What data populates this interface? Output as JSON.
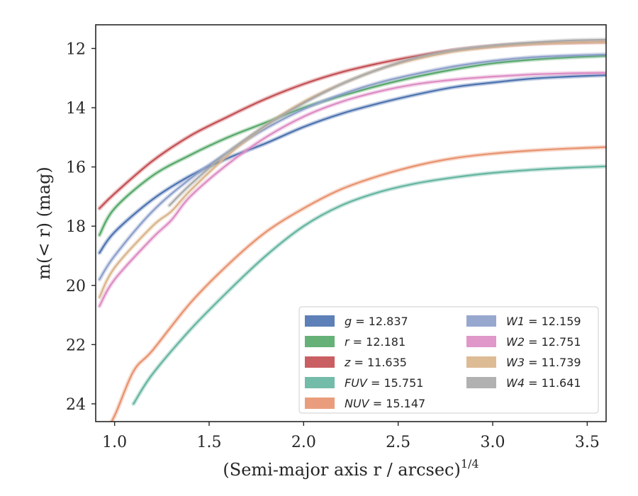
{
  "chart_data": {
    "type": "line",
    "xlabel": "(Semi-major axis r / arcsec)",
    "xlabel_superscript": "1/4",
    "ylabel": "m(< r) (mag)",
    "xlim": [
      0.9,
      3.6
    ],
    "ylim": [
      24.6,
      11.2
    ],
    "y_inverted": true,
    "grid": false,
    "legend_placement": "lower-right",
    "x_ticks": [
      1.0,
      1.5,
      2.0,
      2.5,
      3.0,
      3.5
    ],
    "x_tick_labels": [
      "1.0",
      "1.5",
      "2.0",
      "2.5",
      "3.0",
      "3.5"
    ],
    "y_ticks": [
      12,
      14,
      16,
      18,
      20,
      22,
      24
    ],
    "y_tick_labels": [
      "12",
      "14",
      "16",
      "18",
      "20",
      "22",
      "24"
    ],
    "series": [
      {
        "name": "g = 12.837",
        "legend_name": "g",
        "legend_value": "= 12.837",
        "color": "#4c72b0",
        "x": [
          0.92,
          1.0,
          1.2,
          1.4,
          1.6,
          1.8,
          2.0,
          2.2,
          2.4,
          2.6,
          2.8,
          3.0,
          3.2,
          3.4,
          3.6
        ],
        "y": [
          18.9,
          18.2,
          17.1,
          16.3,
          15.7,
          15.2,
          14.65,
          14.2,
          13.85,
          13.55,
          13.3,
          13.15,
          13.02,
          12.95,
          12.9
        ]
      },
      {
        "name": "r = 12.181",
        "legend_name": "r",
        "legend_value": "= 12.181",
        "color": "#55a868",
        "x": [
          0.92,
          1.0,
          1.2,
          1.4,
          1.6,
          1.8,
          2.0,
          2.2,
          2.4,
          2.6,
          2.8,
          3.0,
          3.2,
          3.4,
          3.6
        ],
        "y": [
          18.3,
          17.4,
          16.3,
          15.6,
          15.0,
          14.5,
          14.0,
          13.6,
          13.25,
          12.95,
          12.7,
          12.5,
          12.38,
          12.3,
          12.25
        ]
      },
      {
        "name": "z = 11.635",
        "legend_name": "z",
        "legend_value": "= 11.635",
        "color": "#c44e52",
        "x": [
          0.92,
          1.0,
          1.2,
          1.4,
          1.6,
          1.8,
          2.0,
          2.2,
          2.4,
          2.6,
          2.8,
          3.0,
          3.2,
          3.4,
          3.6
        ],
        "y": [
          17.4,
          16.9,
          15.8,
          14.95,
          14.3,
          13.7,
          13.2,
          12.8,
          12.5,
          12.25,
          12.05,
          11.92,
          11.84,
          11.8,
          11.78
        ]
      },
      {
        "name": "FUV = 15.751",
        "legend_name": "FUV",
        "legend_value": "= 15.751",
        "color": "#64b5a0",
        "x": [
          1.1,
          1.2,
          1.4,
          1.6,
          1.8,
          2.0,
          2.2,
          2.4,
          2.6,
          2.8,
          3.0,
          3.2,
          3.4,
          3.6
        ],
        "y": [
          24.0,
          23.0,
          21.5,
          20.2,
          19.0,
          18.0,
          17.3,
          16.85,
          16.55,
          16.35,
          16.2,
          16.1,
          16.03,
          15.98
        ]
      },
      {
        "name": "NUV = 15.147",
        "legend_name": "NUV",
        "legend_value": "= 15.147",
        "color": "#e8926e",
        "x": [
          0.92,
          1.0,
          1.1,
          1.2,
          1.4,
          1.6,
          1.8,
          2.0,
          2.2,
          2.4,
          2.6,
          2.8,
          3.0,
          3.2,
          3.4,
          3.6
        ],
        "y": [
          25.3,
          24.4,
          22.9,
          22.2,
          20.6,
          19.3,
          18.2,
          17.4,
          16.75,
          16.3,
          15.95,
          15.7,
          15.55,
          15.45,
          15.38,
          15.33
        ]
      },
      {
        "name": "W1 = 12.159",
        "legend_name": "W1",
        "legend_value": "= 12.159",
        "color": "#8c9fca",
        "x": [
          0.92,
          1.0,
          1.2,
          1.4,
          1.6,
          1.8,
          2.0,
          2.2,
          2.4,
          2.6,
          2.8,
          3.0,
          3.2,
          3.4,
          3.6
        ],
        "y": [
          19.8,
          19.0,
          17.5,
          16.4,
          15.5,
          14.7,
          14.05,
          13.55,
          13.15,
          12.85,
          12.6,
          12.42,
          12.3,
          12.24,
          12.2
        ]
      },
      {
        "name": "W2 = 12.751",
        "legend_name": "W2",
        "legend_value": "= 12.751",
        "color": "#dd8cc4",
        "x": [
          0.92,
          1.0,
          1.2,
          1.3,
          1.4,
          1.6,
          1.8,
          2.0,
          2.2,
          2.4,
          2.6,
          2.8,
          3.0,
          3.2,
          3.4,
          3.6
        ],
        "y": [
          20.7,
          19.8,
          18.4,
          17.8,
          17.0,
          15.9,
          15.0,
          14.3,
          13.8,
          13.45,
          13.2,
          13.05,
          12.95,
          12.88,
          12.84,
          12.82
        ]
      },
      {
        "name": "W3 = 11.739",
        "legend_name": "W3",
        "legend_value": "= 11.739",
        "color": "#d9b48a",
        "x": [
          0.92,
          1.0,
          1.2,
          1.3,
          1.4,
          1.6,
          1.8,
          2.0,
          2.2,
          2.4,
          2.6,
          2.8,
          3.0,
          3.2,
          3.4,
          3.6
        ],
        "y": [
          20.4,
          19.4,
          18.0,
          17.5,
          16.8,
          15.6,
          14.6,
          13.8,
          13.2,
          12.7,
          12.35,
          12.1,
          11.95,
          11.85,
          11.8,
          11.78
        ]
      },
      {
        "name": "W4 = 11.641",
        "legend_name": "W4",
        "legend_value": "= 11.641",
        "color": "#a9a9a9",
        "x": [
          1.29,
          1.4,
          1.6,
          1.8,
          2.0,
          2.2,
          2.4,
          2.6,
          2.8,
          3.0,
          3.2,
          3.4,
          3.6
        ],
        "y": [
          17.3,
          16.6,
          15.5,
          14.6,
          13.85,
          13.2,
          12.7,
          12.3,
          12.05,
          11.9,
          11.8,
          11.73,
          11.7
        ]
      }
    ]
  }
}
